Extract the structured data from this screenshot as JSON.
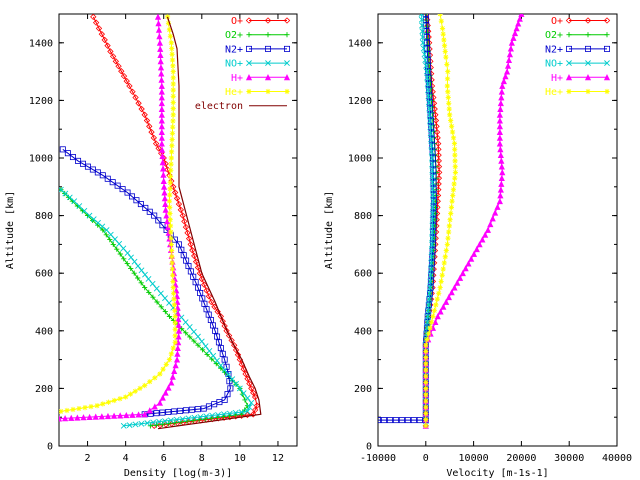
{
  "chart_data": [
    {
      "type": "line",
      "title": "",
      "xlabel": "Density  [log(m-3)]",
      "ylabel": "Altitude [km]",
      "xlim": [
        0.5,
        13
      ],
      "ylim": [
        0,
        1500
      ],
      "xticks": [
        "2",
        "4",
        "6",
        "8",
        "10",
        "12"
      ],
      "yticks": [
        "0",
        "200",
        "400",
        "600",
        "800",
        "1000",
        "1200",
        "1400"
      ],
      "legend_position": "top-right",
      "series": [
        {
          "name": "O+",
          "color": "#ff0000",
          "marker": "diamond",
          "x": [
            5.5,
            10.7,
            10.9,
            10.8,
            10.6,
            10.3,
            10.0,
            9.7,
            9.3,
            9.0,
            8.5,
            8.0,
            7.5,
            7.0,
            6.5,
            6.0,
            5.6,
            5.0,
            4.2,
            3.2,
            2.3
          ],
          "y": [
            70,
            110,
            140,
            170,
            200,
            250,
            300,
            350,
            400,
            450,
            500,
            580,
            680,
            800,
            900,
            1000,
            1050,
            1150,
            1250,
            1370,
            1490
          ]
        },
        {
          "name": "O2+",
          "color": "#00cc00",
          "marker": "plus",
          "x": [
            5.3,
            10.1,
            10.4,
            10.0,
            9.0,
            7.8,
            6.3,
            5.0,
            3.9,
            2.8,
            2.0,
            1.2,
            0.6
          ],
          "y": [
            70,
            110,
            140,
            200,
            270,
            350,
            450,
            550,
            650,
            750,
            800,
            850,
            890
          ]
        },
        {
          "name": "N2+",
          "color": "#0000cc",
          "marker": "square",
          "x": [
            5.0,
            8.1,
            9.2,
            9.5,
            9.4,
            9.2,
            8.7,
            7.8,
            6.8,
            5.5,
            4.1,
            2.8,
            1.5,
            0.7
          ],
          "y": [
            110,
            130,
            160,
            200,
            250,
            300,
            400,
            550,
            700,
            800,
            880,
            940,
            990,
            1030
          ]
        },
        {
          "name": "NO+",
          "color": "#00cccc",
          "marker": "cross",
          "x": [
            3.9,
            10.4,
            10.6,
            10.0,
            9.0,
            7.8,
            6.5,
            5.2,
            4.1,
            3.0,
            2.1,
            1.3,
            0.6
          ],
          "y": [
            70,
            120,
            150,
            200,
            280,
            380,
            480,
            580,
            670,
            750,
            800,
            850,
            890
          ]
        },
        {
          "name": "H+",
          "color": "#ff00ff",
          "marker": "triangle",
          "x": [
            0.5,
            5.0,
            5.8,
            6.4,
            6.7,
            6.8,
            6.7,
            6.5,
            6.3,
            6.1,
            6.0,
            5.9,
            5.9,
            5.9,
            5.8,
            5.7
          ],
          "y": [
            95,
            110,
            150,
            220,
            300,
            400,
            520,
            620,
            720,
            820,
            920,
            1050,
            1150,
            1250,
            1400,
            1490
          ]
        },
        {
          "name": "He+",
          "color": "#ffff00",
          "marker": "star",
          "x": [
            0.6,
            2.5,
            4.0,
            5.0,
            5.8,
            6.3,
            6.6,
            6.6,
            6.5,
            6.4,
            6.3,
            6.4,
            6.5,
            6.5,
            6.4,
            6.2
          ],
          "y": [
            120,
            140,
            170,
            210,
            250,
            300,
            360,
            450,
            550,
            700,
            850,
            1000,
            1150,
            1300,
            1400,
            1490
          ]
        },
        {
          "name": "electron",
          "color": "#800000",
          "marker": "none",
          "x": [
            5.7,
            11.1,
            11.0,
            10.8,
            10.5,
            10.1,
            9.6,
            9.2,
            8.7,
            8.0,
            7.4,
            6.8,
            6.8,
            6.8,
            6.8,
            6.7,
            6.5,
            6.2
          ],
          "y": [
            60,
            110,
            160,
            200,
            240,
            300,
            360,
            420,
            500,
            600,
            750,
            900,
            1000,
            1100,
            1250,
            1380,
            1430,
            1490
          ]
        }
      ]
    },
    {
      "type": "line",
      "title": "",
      "xlabel": "Velocity  [m-1s-1]",
      "ylabel": "Altitude [km]",
      "xlim": [
        -10000,
        40000
      ],
      "ylim": [
        0,
        1500
      ],
      "xticks": [
        "-10000",
        "0",
        "10000",
        "20000",
        "30000",
        "40000"
      ],
      "yticks": [
        "0",
        "200",
        "400",
        "600",
        "800",
        "1000",
        "1200",
        "1400"
      ],
      "legend_position": "top-right",
      "series": [
        {
          "name": "O+",
          "color": "#ff0000",
          "marker": "diamond",
          "x": [
            0,
            0,
            600,
            1400,
            2000,
            2500,
            2800,
            2600,
            2000,
            1300,
            700,
            200
          ],
          "y": [
            70,
            350,
            450,
            550,
            700,
            850,
            950,
            1050,
            1150,
            1250,
            1400,
            1500
          ]
        },
        {
          "name": "O2+",
          "color": "#00cc00",
          "marker": "plus",
          "x": [
            0,
            0,
            500,
            1100,
            1700,
            2100,
            2200,
            1800,
            1200,
            600,
            100
          ],
          "y": [
            70,
            350,
            450,
            550,
            700,
            850,
            950,
            1050,
            1200,
            1350,
            1500
          ]
        },
        {
          "name": "N2+",
          "color": "#0000cc",
          "marker": "square",
          "x": [
            -10000,
            0,
            0,
            400,
            1000,
            1500,
            1700,
            1500,
            1000,
            500,
            0
          ],
          "y": [
            90,
            90,
            350,
            450,
            550,
            700,
            850,
            1000,
            1150,
            1300,
            1500
          ]
        },
        {
          "name": "NO+",
          "color": "#00cccc",
          "marker": "cross",
          "x": [
            0,
            0,
            400,
            900,
            1300,
            1500,
            1300,
            800,
            200,
            -600,
            -900
          ],
          "y": [
            70,
            350,
            450,
            550,
            700,
            850,
            1000,
            1150,
            1300,
            1400,
            1500
          ]
        },
        {
          "name": "H+",
          "color": "#ff00ff",
          "marker": "triangle",
          "x": [
            0,
            0,
            2500,
            6000,
            9500,
            13000,
            15500,
            16000,
            15500,
            15500,
            16000,
            17000,
            18000,
            19000,
            20000
          ],
          "y": [
            70,
            350,
            450,
            550,
            650,
            750,
            850,
            950,
            1050,
            1150,
            1250,
            1300,
            1400,
            1450,
            1500
          ]
        },
        {
          "name": "He+",
          "color": "#ffff00",
          "marker": "star",
          "x": [
            0,
            0,
            1500,
            3000,
            4500,
            5500,
            6200,
            6000,
            5000,
            4500,
            4600,
            4200,
            3500,
            3000
          ],
          "y": [
            70,
            350,
            450,
            550,
            700,
            850,
            950,
            1050,
            1150,
            1250,
            1300,
            1350,
            1450,
            1500
          ]
        }
      ]
    }
  ]
}
